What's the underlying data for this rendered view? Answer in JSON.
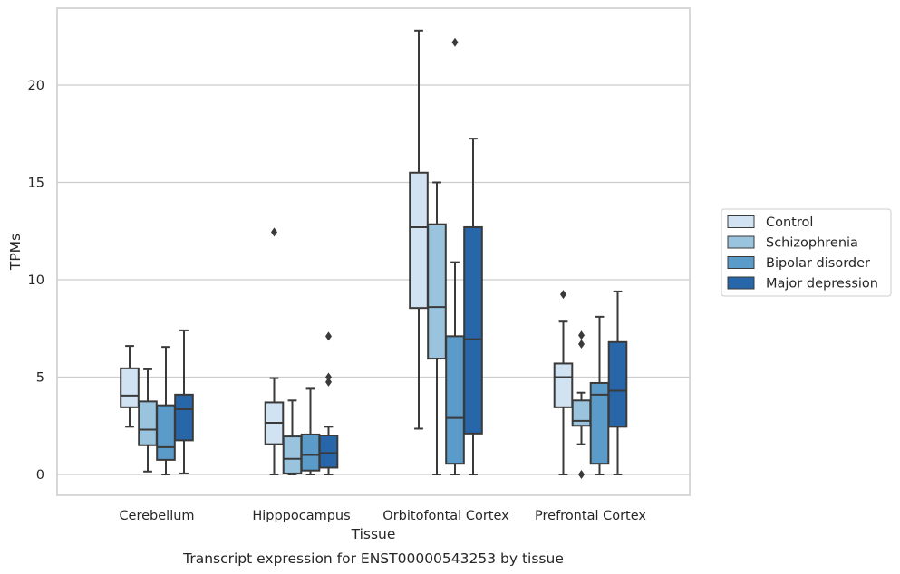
{
  "chart_data": {
    "type": "boxplot",
    "xlabel": "Tissue",
    "ylabel": "TPMs",
    "caption": "Transcript expression for ENST00000543253 by tissue",
    "categories": [
      "Cerebellum",
      "Hipppocampus",
      "Orbitofontal Cortex",
      "Prefrontal Cortex"
    ],
    "ylim": [
      -1.1,
      23.4
    ],
    "yticks": [
      0,
      5,
      10,
      15,
      20
    ],
    "grid": true,
    "legend_position": "right",
    "series": [
      {
        "name": "Control",
        "color": "#d1e2f2",
        "boxes": [
          {
            "whislo": 2.45,
            "q1": 3.45,
            "med": 4.05,
            "q3": 5.45,
            "whishi": 6.6,
            "fliers": []
          },
          {
            "whislo": 0.0,
            "q1": 1.55,
            "med": 2.65,
            "q3": 3.7,
            "whishi": 4.95,
            "fliers": [
              12.45
            ]
          },
          {
            "whislo": 2.35,
            "q1": 8.55,
            "med": 12.7,
            "q3": 15.5,
            "whishi": 22.8,
            "fliers": []
          },
          {
            "whislo": 0.0,
            "q1": 3.45,
            "med": 5.0,
            "q3": 5.7,
            "whishi": 7.85,
            "fliers": [
              9.25
            ]
          }
        ]
      },
      {
        "name": "Schizophrenia",
        "color": "#9ac3de",
        "boxes": [
          {
            "whislo": 0.15,
            "q1": 1.5,
            "med": 2.3,
            "q3": 3.75,
            "whishi": 5.4,
            "fliers": []
          },
          {
            "whislo": 0.0,
            "q1": 0.05,
            "med": 0.8,
            "q3": 1.95,
            "whishi": 3.8,
            "fliers": []
          },
          {
            "whislo": 0.0,
            "q1": 5.95,
            "med": 8.6,
            "q3": 12.85,
            "whishi": 15.0,
            "fliers": []
          },
          {
            "whislo": 1.55,
            "q1": 2.5,
            "med": 2.75,
            "q3": 3.8,
            "whishi": 4.2,
            "fliers": [
              0.0,
              6.7,
              7.15
            ]
          }
        ]
      },
      {
        "name": "Bipolar disorder",
        "color": "#5a9bc9",
        "boxes": [
          {
            "whislo": 0.0,
            "q1": 0.75,
            "med": 1.4,
            "q3": 3.55,
            "whishi": 6.55,
            "fliers": []
          },
          {
            "whislo": 0.0,
            "q1": 0.2,
            "med": 1.0,
            "q3": 2.05,
            "whishi": 4.4,
            "fliers": []
          },
          {
            "whislo": 0.0,
            "q1": 0.55,
            "med": 2.9,
            "q3": 7.1,
            "whishi": 10.9,
            "fliers": [
              22.2
            ]
          },
          {
            "whislo": 0.0,
            "q1": 0.55,
            "med": 4.1,
            "q3": 4.7,
            "whishi": 8.1,
            "fliers": []
          }
        ]
      },
      {
        "name": "Major depression",
        "color": "#2766a8",
        "boxes": [
          {
            "whislo": 0.05,
            "q1": 1.75,
            "med": 3.35,
            "q3": 4.1,
            "whishi": 7.4,
            "fliers": []
          },
          {
            "whislo": 0.0,
            "q1": 0.35,
            "med": 1.1,
            "q3": 2.0,
            "whishi": 2.45,
            "fliers": [
              4.75,
              5.0,
              7.1
            ]
          },
          {
            "whislo": 0.0,
            "q1": 2.1,
            "med": 6.95,
            "q3": 12.7,
            "whishi": 17.25,
            "fliers": []
          },
          {
            "whislo": 0.0,
            "q1": 2.45,
            "med": 4.3,
            "q3": 6.8,
            "whishi": 9.4,
            "fliers": []
          }
        ]
      }
    ]
  }
}
